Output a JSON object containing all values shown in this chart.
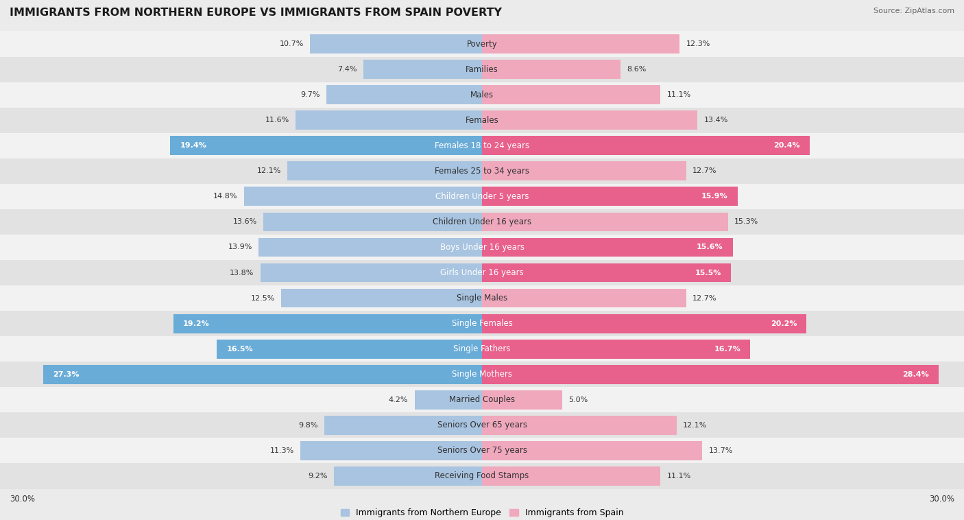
{
  "title": "IMMIGRANTS FROM NORTHERN EUROPE VS IMMIGRANTS FROM SPAIN POVERTY",
  "source": "Source: ZipAtlas.com",
  "categories": [
    "Poverty",
    "Families",
    "Males",
    "Females",
    "Females 18 to 24 years",
    "Females 25 to 34 years",
    "Children Under 5 years",
    "Children Under 16 years",
    "Boys Under 16 years",
    "Girls Under 16 years",
    "Single Males",
    "Single Females",
    "Single Fathers",
    "Single Mothers",
    "Married Couples",
    "Seniors Over 65 years",
    "Seniors Over 75 years",
    "Receiving Food Stamps"
  ],
  "left_values": [
    10.7,
    7.4,
    9.7,
    11.6,
    19.4,
    12.1,
    14.8,
    13.6,
    13.9,
    13.8,
    12.5,
    19.2,
    16.5,
    27.3,
    4.2,
    9.8,
    11.3,
    9.2
  ],
  "right_values": [
    12.3,
    8.6,
    11.1,
    13.4,
    20.4,
    12.7,
    15.9,
    15.3,
    15.6,
    15.5,
    12.7,
    20.2,
    16.7,
    28.4,
    5.0,
    12.1,
    13.7,
    11.1
  ],
  "left_color_normal": "#a8c4e0",
  "right_color_normal": "#f0a8bc",
  "left_color_high": "#6aacd8",
  "right_color_high": "#e8608c",
  "bg_color": "#ebebeb",
  "row_bg_light": "#f2f2f2",
  "row_bg_dark": "#e2e2e2",
  "max_val": 30.0,
  "legend_left": "Immigrants from Northern Europe",
  "legend_right": "Immigrants from Spain",
  "high_threshold": 15.5,
  "label_fontsize": 8.5,
  "value_fontsize": 8.0,
  "title_fontsize": 11.5
}
